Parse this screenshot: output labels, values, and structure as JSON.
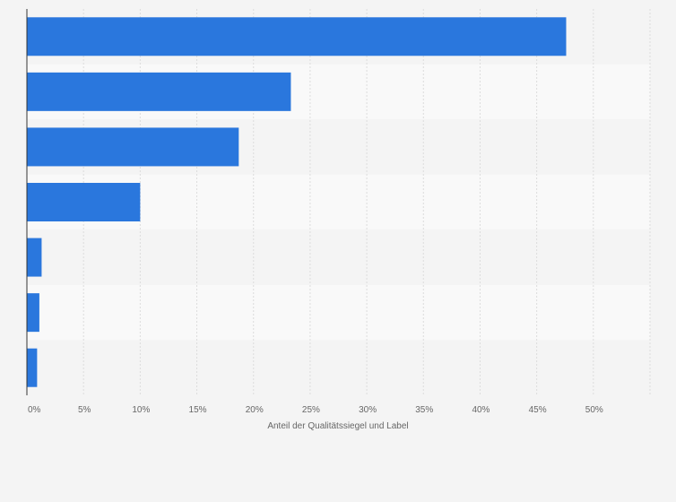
{
  "chart_data": {
    "type": "bar",
    "orientation": "horizontal",
    "categories": [
      "",
      "",
      "",
      "",
      "",
      "",
      ""
    ],
    "values": [
      47.6,
      23.3,
      18.7,
      10.0,
      1.3,
      1.1,
      0.9
    ],
    "xlim": [
      0,
      55
    ],
    "x_ticks": [
      "0%",
      "5%",
      "10%",
      "15%",
      "20%",
      "25%",
      "30%",
      "35%",
      "40%",
      "45%",
      "50%"
    ],
    "xlabel": "Anteil der Qualitätssiegel und Label",
    "ylabel": "",
    "grid": true,
    "colors": {
      "bar": "#2a77dd",
      "band_light": "#f9f9f9",
      "band_dark": "#f4f4f4",
      "grid": "#dcdcdc",
      "axis": "#333333"
    }
  }
}
